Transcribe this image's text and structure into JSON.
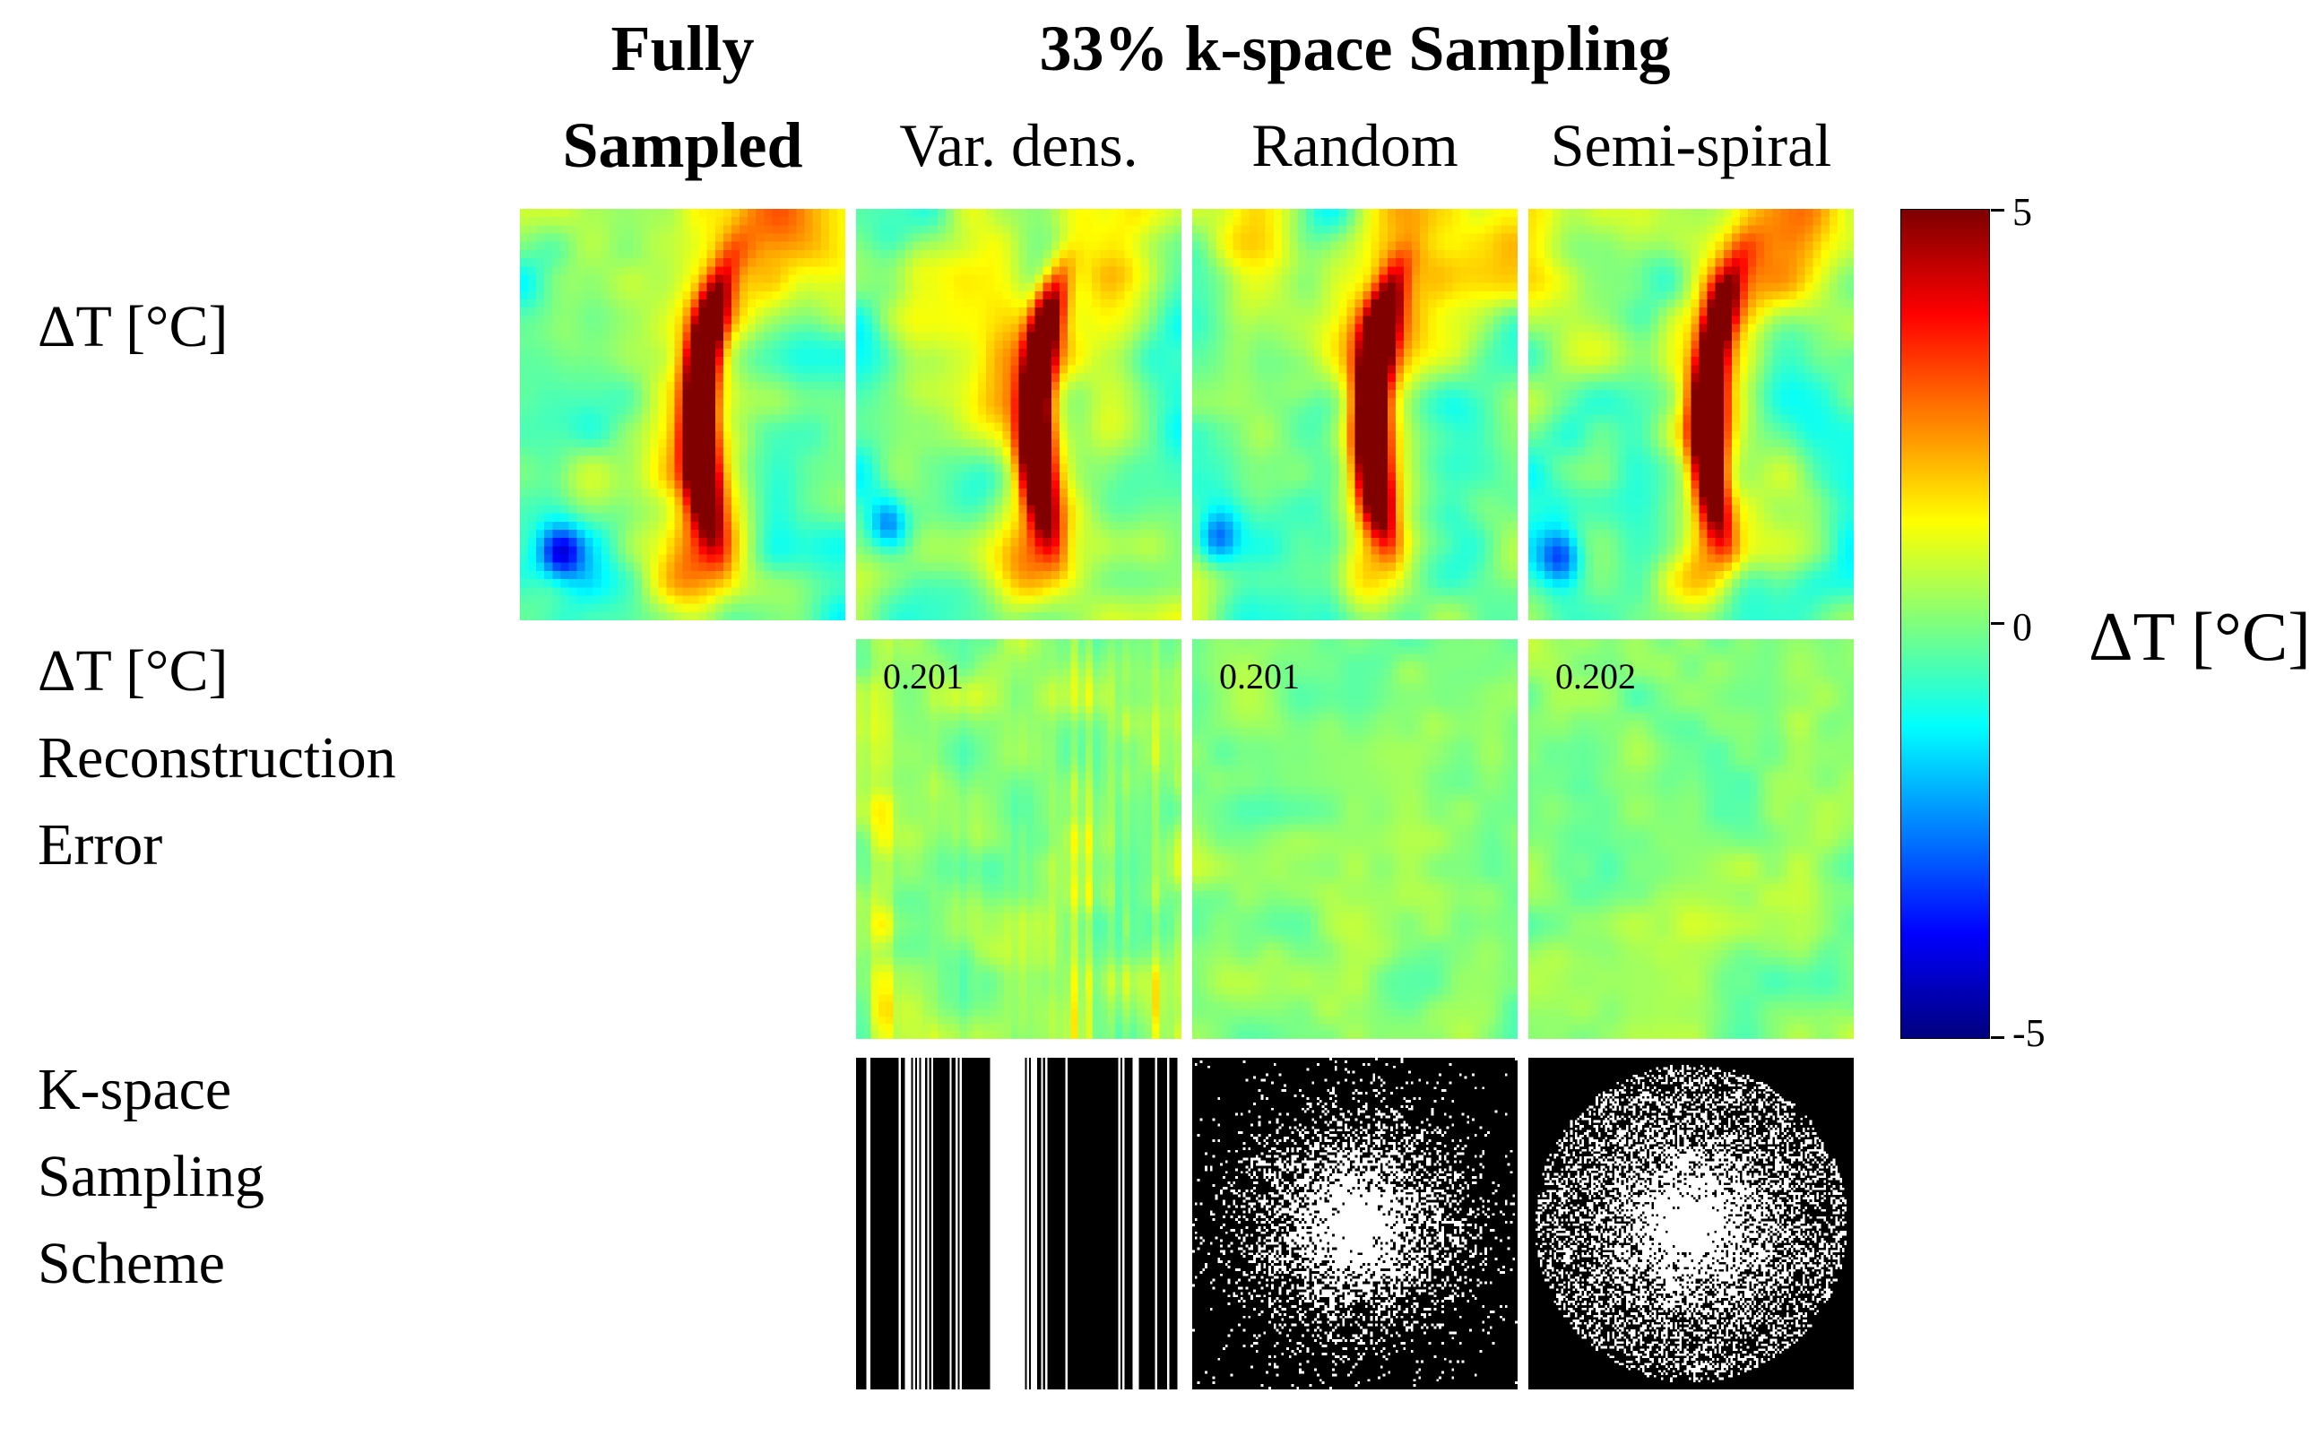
{
  "header": {
    "fully": "Fully\nSampled",
    "sampling": "33% k-space Sampling",
    "columns": [
      {
        "label": "Var. dens."
      },
      {
        "label": "Random"
      },
      {
        "label": "Semi-spiral"
      }
    ]
  },
  "row_labels": {
    "dt": "ΔT [°C]",
    "error": "ΔT [°C]\nReconstruction\nError",
    "kspace": "K-space\nSampling\nScheme"
  },
  "colorbar": {
    "label": "ΔT [°C]",
    "ticks": [
      "5",
      "0",
      "-5"
    ],
    "min": -5,
    "max": 5,
    "colormap": "jet"
  },
  "panels": {
    "dt_maps": [
      {
        "name": "fully-sampled",
        "seed": 11,
        "cold": [
          0.13,
          0.84
        ]
      },
      {
        "name": "var-dens",
        "seed": 23,
        "cold": [
          0.1,
          0.76
        ]
      },
      {
        "name": "random",
        "seed": 37,
        "cold": [
          0.08,
          0.8
        ]
      },
      {
        "name": "semi-spiral",
        "seed": 41,
        "cold": [
          0.1,
          0.84
        ]
      }
    ],
    "error_maps": [
      {
        "name": "var-dens",
        "seed": 53,
        "value": "0.201",
        "stripes": true
      },
      {
        "name": "random",
        "seed": 59,
        "value": "0.201",
        "stripes": false
      },
      {
        "name": "semi-spiral",
        "seed": 67,
        "value": "0.202",
        "stripes": false
      }
    ],
    "kspace_maps": [
      {
        "name": "var-dens",
        "seed": 71,
        "type": "lines"
      },
      {
        "name": "random",
        "seed": 79,
        "type": "gaussian"
      },
      {
        "name": "semi-spiral",
        "seed": 83,
        "type": "disk"
      }
    ]
  },
  "chart_data": {
    "type": "heatmap",
    "layout": {
      "columns": [
        "Fully Sampled",
        "Var. dens.",
        "Random",
        "Semi-spiral"
      ],
      "column_group": {
        "label": "33% k-space Sampling",
        "members": [
          "Var. dens.",
          "Random",
          "Semi-spiral"
        ]
      },
      "rows": [
        "ΔT [°C]",
        "ΔT [°C] Reconstruction Error",
        "K-space Sampling Scheme"
      ]
    },
    "colorbar": {
      "label": "ΔT [°C]",
      "range": [
        -5,
        5
      ],
      "ticks": [
        5,
        0,
        -5
      ],
      "colormap": "jet"
    },
    "dt_maps_description": "Temperature change maps with a hot (~+5 °C) vertical focal streak right of center on a ~0 °C green background, warm yellow regions at top, small cold blue spot lower-left",
    "reconstruction_error": [
      {
        "column": "Var. dens.",
        "value": 0.201
      },
      {
        "column": "Random",
        "value": 0.201
      },
      {
        "column": "Semi-spiral",
        "value": 0.202
      }
    ],
    "kspace_schemes": [
      {
        "column": "Var. dens.",
        "pattern": "variable-density vertical line sampling, dense white band near center"
      },
      {
        "column": "Random",
        "pattern": "random point sampling, density increasing toward fully sampled center"
      },
      {
        "column": "Semi-spiral",
        "pattern": "semi-spiral sampling confined to a disk, dense center, empty corners"
      }
    ]
  }
}
